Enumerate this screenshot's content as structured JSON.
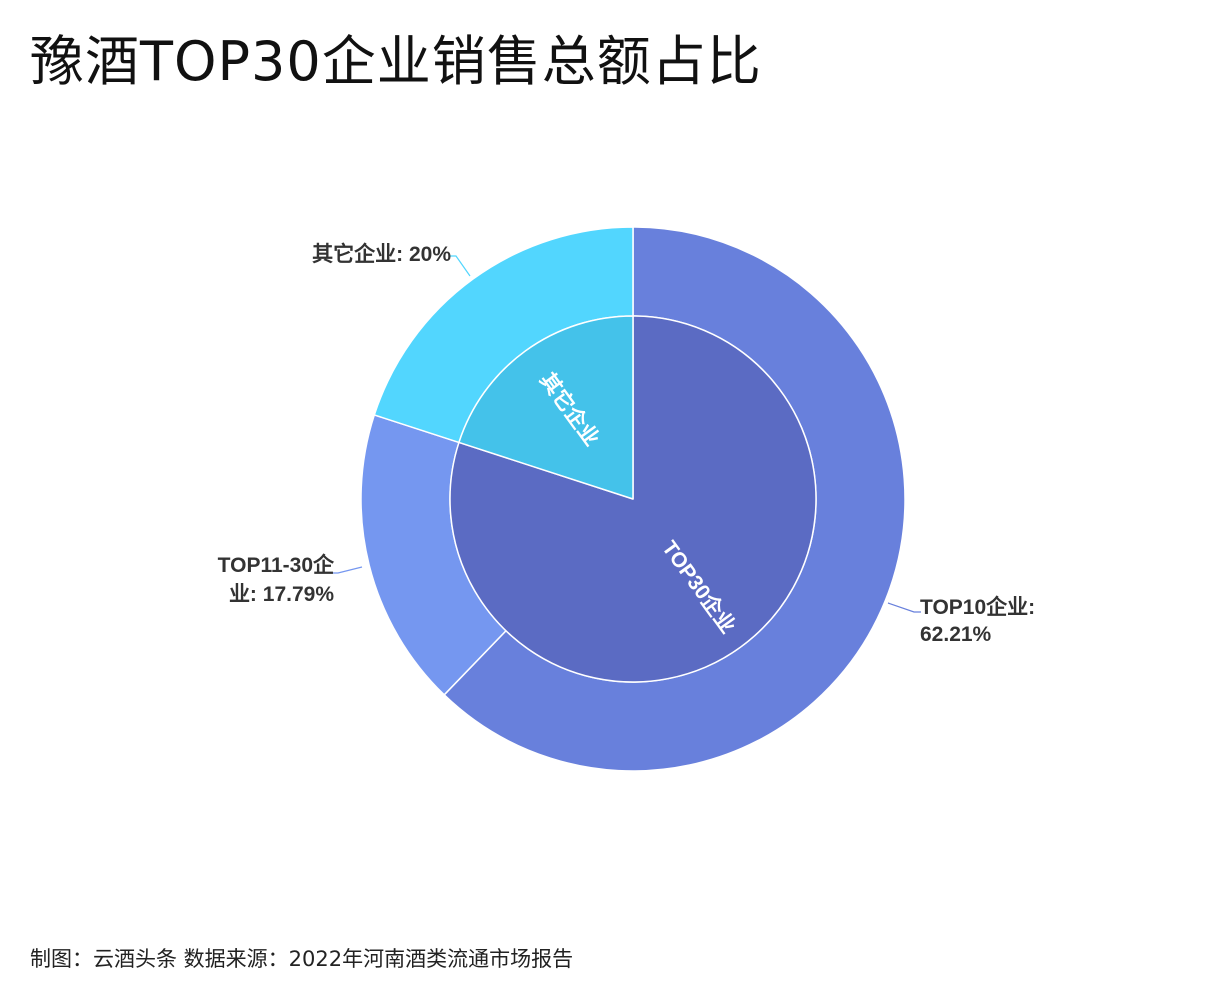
{
  "chart_data": {
    "type": "pie",
    "variant": "nested-donut",
    "title": "豫酒TOP30企业销售总额占比",
    "rings": [
      {
        "ring": "inner",
        "slices": [
          {
            "label": "TOP30企业",
            "value": 80.0,
            "color": "#5b6bc3"
          },
          {
            "label": "其它企业",
            "value": 20.0,
            "color": "#44c2ea"
          }
        ]
      },
      {
        "ring": "outer",
        "slices": [
          {
            "label": "TOP10企业",
            "value": 62.21,
            "display": "62.21%",
            "color": "#6880dc"
          },
          {
            "label": "TOP11-30企业",
            "value": 17.79,
            "display": "17.79%",
            "color": "#7597f0"
          },
          {
            "label": "其它企业",
            "value": 20.0,
            "display": "20%",
            "color": "#52d6fe"
          }
        ]
      }
    ],
    "label_texts": {
      "top10_line1": "TOP10企业:",
      "top10_line2": "62.21%",
      "top1130_line1": "TOP11-30企",
      "top1130_line2": "业: 17.79%",
      "other_line1": "其它企业: 20%"
    },
    "legend": "none"
  },
  "footer": {
    "source_note": "制图：云酒头条 数据来源：2022年河南酒类流通市场报告"
  }
}
